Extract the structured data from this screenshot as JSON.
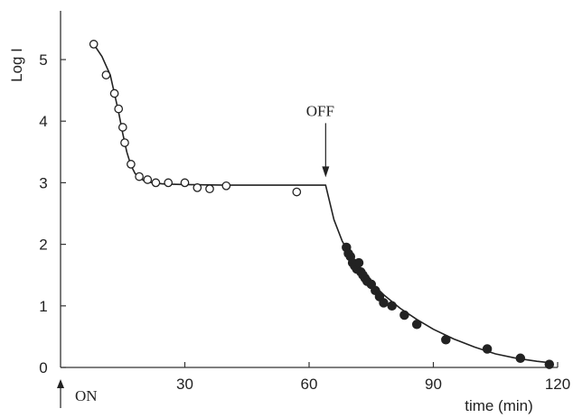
{
  "chart_data": {
    "type": "scatter",
    "xlabel": "time (min)",
    "ylabel": "Log I",
    "xlim": [
      0,
      120
    ],
    "ylim": [
      0,
      5.6
    ],
    "x_ticks": [
      30,
      60,
      90,
      120
    ],
    "y_ticks": [
      0,
      1,
      2,
      3,
      4,
      5
    ],
    "grid": false,
    "annotations": [
      {
        "text": "OFF",
        "x": 64,
        "y": 3.0,
        "arrow": "down"
      },
      {
        "text": "ON",
        "x": 0,
        "y": 0,
        "arrow": "up"
      }
    ],
    "series": [
      {
        "marker": "open-circle",
        "x": [
          8,
          11,
          13,
          14,
          15,
          15.5,
          17,
          19,
          21,
          23,
          26,
          30,
          33,
          36,
          40,
          57
        ],
        "y": [
          5.25,
          4.75,
          4.45,
          4.2,
          3.9,
          3.65,
          3.3,
          3.1,
          3.05,
          3.0,
          3.0,
          3.0,
          2.92,
          2.9,
          2.95,
          2.85
        ]
      },
      {
        "marker": "filled-circle",
        "x": [
          69,
          69.5,
          70,
          70.5,
          71,
          71.5,
          72,
          72.5,
          73,
          73.5,
          74,
          75,
          76,
          77,
          78,
          80,
          83,
          86,
          93,
          103,
          111,
          118
        ],
        "y": [
          1.95,
          1.85,
          1.8,
          1.7,
          1.65,
          1.6,
          1.7,
          1.55,
          1.5,
          1.45,
          1.4,
          1.35,
          1.25,
          1.15,
          1.05,
          1.0,
          0.85,
          0.7,
          0.45,
          0.3,
          0.15,
          0.05
        ]
      }
    ],
    "fit_curve": {
      "x": [
        8,
        10,
        12,
        13,
        14,
        15,
        16,
        17,
        18,
        20,
        22,
        25,
        30,
        40,
        50,
        60,
        64,
        66,
        68,
        70,
        72,
        75,
        78,
        82,
        86,
        90,
        95,
        100,
        105,
        110,
        115,
        119
      ],
      "y": [
        5.25,
        5.05,
        4.75,
        4.45,
        4.15,
        3.8,
        3.5,
        3.28,
        3.15,
        3.04,
        3.0,
        2.98,
        2.97,
        2.96,
        2.96,
        2.96,
        2.96,
        2.4,
        2.05,
        1.82,
        1.62,
        1.38,
        1.18,
        0.96,
        0.78,
        0.62,
        0.46,
        0.33,
        0.22,
        0.15,
        0.1,
        0.07
      ]
    }
  }
}
